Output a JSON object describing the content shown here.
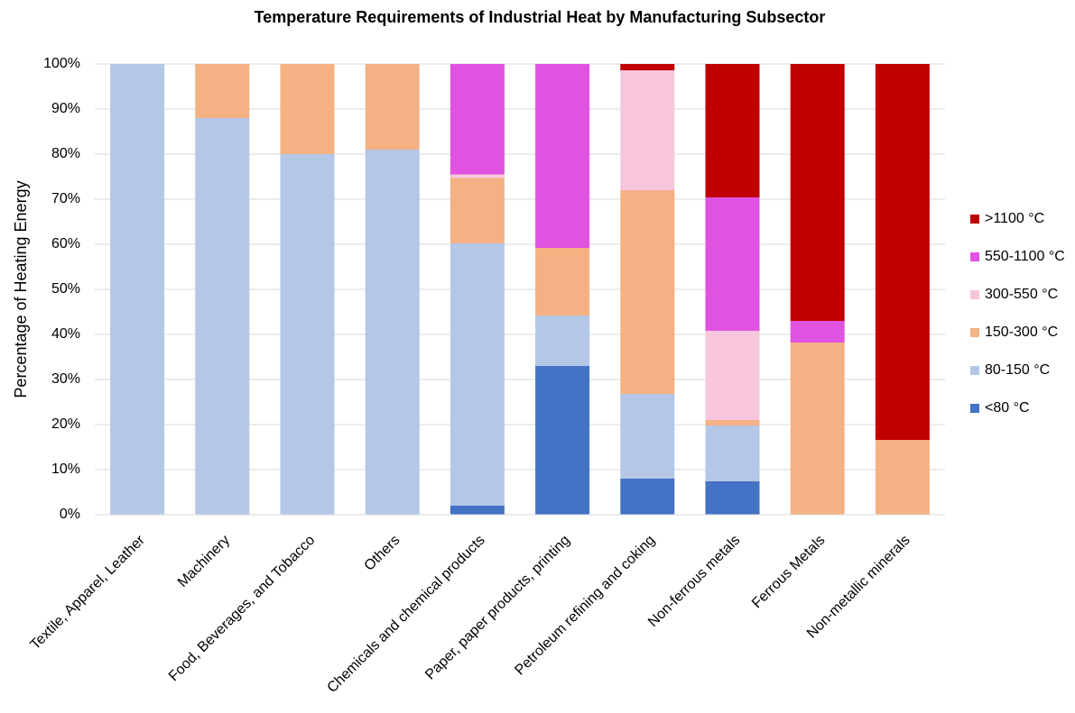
{
  "chart_data": {
    "type": "stacked_bar",
    "title": "Temperature Requirements of Industrial Heat by Manufacturing Subsector",
    "y_label": "Percentage of Heating Energy",
    "categories": [
      "Textile, Apparel, Leather",
      "Machinery",
      "Food, Beverages, and Tobacco",
      "Others",
      "Chemicals and chemical products",
      "Paper, paper products, printing",
      "Petroleum refining and coking",
      "Non-ferrous metals",
      "Ferrous Metals",
      "Non-metallic minerals"
    ],
    "series": [
      {
        "name": "<80 °C",
        "color": "#4472c4",
        "values": [
          0,
          0,
          0,
          0,
          2,
          33,
          8,
          7.4,
          0,
          0
        ]
      },
      {
        "name": "80-150 °C",
        "color": "#b4c7e7",
        "values": [
          100,
          88,
          80,
          81,
          58.2,
          11.2,
          18.8,
          12.4,
          0,
          0
        ]
      },
      {
        "name": "150-300 °C",
        "color": "#f4b183",
        "values": [
          0,
          12,
          20,
          19,
          14.5,
          15,
          45.2,
          1.2,
          38.2,
          16.6
        ]
      },
      {
        "name": "300-550 °C",
        "color": "#f8c6dc",
        "values": [
          0,
          0,
          0,
          0,
          0.8,
          0,
          26.6,
          19.8,
          0,
          0
        ]
      },
      {
        "name": "550-1100 °C",
        "color": "#e052e0",
        "values": [
          0,
          0,
          0,
          0,
          24.5,
          40.8,
          0,
          29.6,
          4.8,
          0
        ]
      },
      {
        "name": ">1100 °C",
        "color": "#c00000",
        "values": [
          0,
          0,
          0,
          0,
          0,
          0,
          1.4,
          29.6,
          57,
          83.4
        ]
      }
    ],
    "ylim": [
      0,
      100
    ],
    "yticks": [
      {
        "value": 0,
        "label": "0%"
      },
      {
        "value": 10,
        "label": "10%"
      },
      {
        "value": 20,
        "label": "20%"
      },
      {
        "value": 30,
        "label": "30%"
      },
      {
        "value": 40,
        "label": "40%"
      },
      {
        "value": 50,
        "label": "50%"
      },
      {
        "value": 60,
        "label": "60%"
      },
      {
        "value": 70,
        "label": "70%"
      },
      {
        "value": 80,
        "label": "80%"
      },
      {
        "value": 90,
        "label": "90%"
      },
      {
        "value": 100,
        "label": "100%"
      }
    ],
    "grid": true,
    "legend": "right"
  }
}
